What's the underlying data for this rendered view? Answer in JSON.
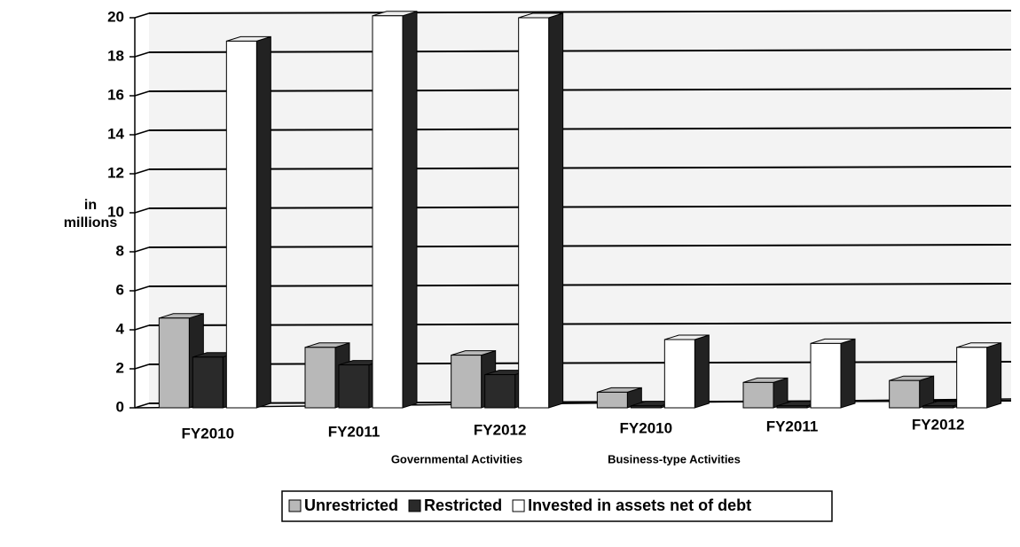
{
  "chart_data": {
    "type": "bar",
    "categories": [
      "FY2010",
      "FY2011",
      "FY2012",
      "FY2010",
      "FY2011",
      "FY2012"
    ],
    "groups": [
      "Governmental Activities",
      "Business-type Activities"
    ],
    "ylabel": "in millions",
    "series": [
      {
        "name": "Unrestricted",
        "color": "#b8b8b8",
        "values": [
          4.6,
          3.1,
          2.7,
          0.8,
          1.3,
          1.4
        ]
      },
      {
        "name": "Restricted",
        "color": "#2a2a2a",
        "values": [
          2.6,
          2.2,
          1.7,
          0.1,
          0.1,
          0.1
        ]
      },
      {
        "name": "Invested in assets net of debt",
        "color": "#ffffff",
        "values": [
          18.8,
          20.1,
          20.0,
          3.5,
          3.3,
          3.1
        ]
      }
    ],
    "ylim": [
      0,
      20
    ],
    "yticks": [
      0,
      2,
      4,
      6,
      8,
      10,
      12,
      14,
      16,
      18,
      20
    ],
    "grid": true,
    "legend": "bottom"
  }
}
